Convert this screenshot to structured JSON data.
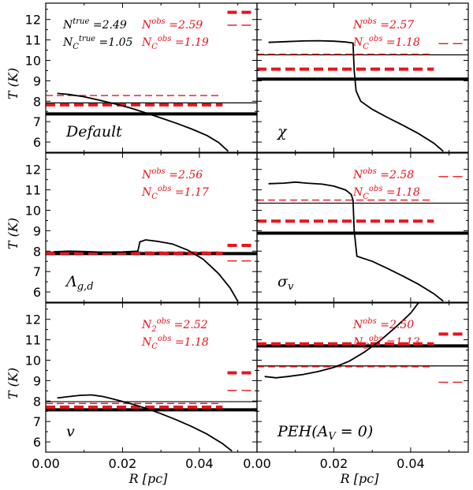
{
  "chart_data": {
    "type": "line",
    "shared_axes": {
      "xlabel": "R [pc]",
      "ylabel": "T (K)",
      "xlim": [
        0,
        0.055
      ],
      "ylim": [
        5.5,
        12.8
      ],
      "xticks": [
        "0.00",
        "0.02",
        "0.04",
        "0.00",
        "0.02",
        "0.04"
      ],
      "yticks": [
        "6",
        "7",
        "8",
        "9",
        "10",
        "11",
        "12"
      ]
    },
    "colors": {
      "observed": "#e8141c",
      "true": "#000000"
    },
    "panels": [
      {
        "id": "default",
        "label": "Default",
        "annotations_black": [
          "N^true =2.49",
          "N_C^true =1.05"
        ],
        "annotations_red": [
          "N^obs =2.59",
          "N_C^obs =1.19"
        ],
        "profile": [
          [
            0.003,
            8.38
          ],
          [
            0.006,
            8.33
          ],
          [
            0.01,
            8.22
          ],
          [
            0.014,
            8.05
          ],
          [
            0.018,
            7.87
          ],
          [
            0.022,
            7.67
          ],
          [
            0.026,
            7.43
          ],
          [
            0.03,
            7.18
          ],
          [
            0.034,
            6.92
          ],
          [
            0.038,
            6.64
          ],
          [
            0.042,
            6.32
          ],
          [
            0.045,
            5.98
          ],
          [
            0.0475,
            5.55
          ]
        ],
        "hlines": [
          {
            "series": "true",
            "style": "thin",
            "y": 7.92
          },
          {
            "series": "true",
            "style": "thick",
            "y": 7.38
          },
          {
            "series": "observed",
            "style": "thin-dashed",
            "y": 8.28
          },
          {
            "series": "observed",
            "style": "thick-dashed",
            "y": 7.82
          }
        ],
        "right_marks": [
          {
            "style": "thick-dashed",
            "y": 12.35
          },
          {
            "style": "thin-dashed",
            "y": 11.72
          }
        ]
      },
      {
        "id": "chi",
        "label": "χ",
        "annotations_black": [],
        "annotations_red": [
          "N^obs =2.57",
          "N_C^obs =1.18"
        ],
        "profile": [
          [
            0.003,
            10.88
          ],
          [
            0.008,
            10.92
          ],
          [
            0.012,
            10.95
          ],
          [
            0.016,
            10.96
          ],
          [
            0.02,
            10.94
          ],
          [
            0.023,
            10.9
          ],
          [
            0.025,
            10.85
          ],
          [
            0.0253,
            9.5
          ],
          [
            0.0258,
            8.5
          ],
          [
            0.027,
            8.0
          ],
          [
            0.03,
            7.6
          ],
          [
            0.034,
            7.2
          ],
          [
            0.038,
            6.82
          ],
          [
            0.042,
            6.42
          ],
          [
            0.046,
            5.95
          ],
          [
            0.0485,
            5.55
          ]
        ],
        "hlines": [
          {
            "series": "true",
            "style": "thin",
            "y": 10.27
          },
          {
            "series": "true",
            "style": "thick",
            "y": 9.08
          },
          {
            "series": "observed",
            "style": "thin-dashed",
            "y": 10.3
          },
          {
            "series": "observed",
            "style": "thick-dashed",
            "y": 9.57
          }
        ],
        "right_marks": [
          {
            "style": "thin-dashed",
            "y": 10.82
          }
        ]
      },
      {
        "id": "lambda",
        "label": "Λ_{g,d}",
        "annotations_black": [],
        "annotations_red": [
          "N^obs =2.56",
          "N_C^obs =1.17"
        ],
        "profile": [
          [
            0.002,
            7.97
          ],
          [
            0.006,
            8.0
          ],
          [
            0.01,
            7.98
          ],
          [
            0.015,
            7.95
          ],
          [
            0.02,
            7.96
          ],
          [
            0.024,
            8.0
          ],
          [
            0.0245,
            8.45
          ],
          [
            0.026,
            8.55
          ],
          [
            0.029,
            8.48
          ],
          [
            0.033,
            8.35
          ],
          [
            0.037,
            8.05
          ],
          [
            0.041,
            7.6
          ],
          [
            0.045,
            6.9
          ],
          [
            0.048,
            6.2
          ],
          [
            0.05,
            5.55
          ]
        ],
        "hlines": [
          {
            "series": "true",
            "style": "thin",
            "y": 7.92
          },
          {
            "series": "true",
            "style": "thick",
            "y": 7.88
          },
          {
            "series": "observed",
            "style": "thin-dashed",
            "y": 7.96
          },
          {
            "series": "observed",
            "style": "thick-dashed",
            "y": 7.9
          }
        ],
        "right_marks": [
          {
            "style": "thick-dashed",
            "y": 8.28
          },
          {
            "style": "thin-dashed",
            "y": 7.52
          }
        ]
      },
      {
        "id": "sigma",
        "label": "σ_v",
        "annotations_black": [],
        "annotations_red": [
          "N^obs =2.58",
          "N_C^obs =1.18"
        ],
        "profile": [
          [
            0.003,
            11.3
          ],
          [
            0.007,
            11.33
          ],
          [
            0.01,
            11.38
          ],
          [
            0.013,
            11.33
          ],
          [
            0.017,
            11.28
          ],
          [
            0.02,
            11.18
          ],
          [
            0.023,
            11.0
          ],
          [
            0.0245,
            10.78
          ],
          [
            0.025,
            10.5
          ],
          [
            0.0253,
            9.0
          ],
          [
            0.026,
            7.75
          ],
          [
            0.03,
            7.5
          ],
          [
            0.034,
            7.15
          ],
          [
            0.038,
            6.78
          ],
          [
            0.042,
            6.38
          ],
          [
            0.046,
            5.92
          ],
          [
            0.0485,
            5.55
          ]
        ],
        "hlines": [
          {
            "series": "true",
            "style": "thin",
            "y": 10.35
          },
          {
            "series": "true",
            "style": "thick",
            "y": 8.88
          },
          {
            "series": "observed",
            "style": "thin-dashed",
            "y": 10.5
          },
          {
            "series": "observed",
            "style": "thick-dashed",
            "y": 9.47
          }
        ],
        "right_marks": [
          {
            "style": "thin-dashed",
            "y": 11.65
          }
        ]
      },
      {
        "id": "v",
        "label": "v",
        "annotations_black": [],
        "annotations_red": [
          "N_2^obs =2.52",
          "N_C^obs =1.18"
        ],
        "profile": [
          [
            0.003,
            8.15
          ],
          [
            0.006,
            8.22
          ],
          [
            0.009,
            8.28
          ],
          [
            0.012,
            8.3
          ],
          [
            0.015,
            8.22
          ],
          [
            0.018,
            8.08
          ],
          [
            0.022,
            7.88
          ],
          [
            0.026,
            7.65
          ],
          [
            0.03,
            7.38
          ],
          [
            0.034,
            7.08
          ],
          [
            0.038,
            6.75
          ],
          [
            0.042,
            6.38
          ],
          [
            0.046,
            5.92
          ],
          [
            0.0485,
            5.55
          ]
        ],
        "hlines": [
          {
            "series": "true",
            "style": "thin",
            "y": 7.97
          },
          {
            "series": "true",
            "style": "thick",
            "y": 7.57
          },
          {
            "series": "observed",
            "style": "thin-dashed",
            "y": 7.88
          },
          {
            "series": "observed",
            "style": "thick-dashed",
            "y": 7.7
          }
        ],
        "right_marks": [
          {
            "style": "thick-dashed",
            "y": 9.38
          },
          {
            "style": "thin-dashed",
            "y": 8.52
          }
        ]
      },
      {
        "id": "peh",
        "label": "PEH(A_V = 0)",
        "annotations_black": [],
        "annotations_red": [
          "N^obs =2.50",
          "N_C^obs =1.13"
        ],
        "profile": [
          [
            0.002,
            9.2
          ],
          [
            0.005,
            9.14
          ],
          [
            0.008,
            9.2
          ],
          [
            0.012,
            9.3
          ],
          [
            0.016,
            9.45
          ],
          [
            0.02,
            9.65
          ],
          [
            0.024,
            9.95
          ],
          [
            0.028,
            10.4
          ],
          [
            0.032,
            10.95
          ],
          [
            0.036,
            11.6
          ],
          [
            0.04,
            12.3
          ],
          [
            0.042,
            12.8
          ]
        ],
        "hlines": [
          {
            "series": "true",
            "style": "thin",
            "y": 9.72
          },
          {
            "series": "true",
            "style": "thick",
            "y": 10.7
          },
          {
            "series": "observed",
            "style": "thin-dashed",
            "y": 9.68
          },
          {
            "series": "observed",
            "style": "thick-dashed",
            "y": 10.8
          }
        ],
        "right_marks": [
          {
            "style": "thick-dashed",
            "y": 11.28
          },
          {
            "style": "thin-dashed",
            "y": 8.92
          }
        ]
      }
    ]
  }
}
